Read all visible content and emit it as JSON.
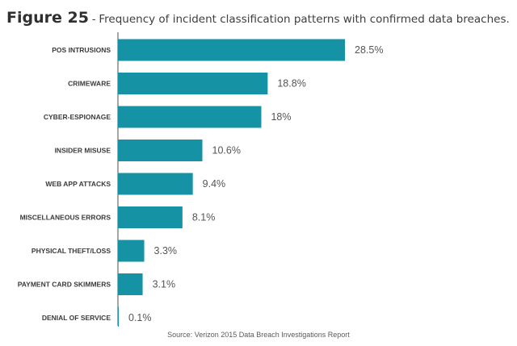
{
  "figure": {
    "label": "Figure 25",
    "dash": " - ",
    "title": "Frequency of incident classification patterns with confirmed data breaches."
  },
  "source": "Source:  Verizon 2015 Data Breach Investigations Report",
  "chart_data": {
    "type": "bar",
    "orientation": "horizontal",
    "title": "Frequency of incident classification patterns with confirmed data breaches.",
    "categories": [
      "POS INTRUSIONS",
      "CRIMEWARE",
      "CYBER-ESPIONAGE",
      "INSIDER MISUSE",
      "WEB APP ATTACKS",
      "MISCELLANEOUS ERRORS",
      "PHYSICAL THEFT/LOSS",
      "PAYMENT CARD SKIMMERS",
      "DENIAL OF SERVICE"
    ],
    "values": [
      28.5,
      18.8,
      18,
      10.6,
      9.4,
      8.1,
      3.3,
      3.1,
      0.1
    ],
    "value_labels": [
      "28.5%",
      "18.8%",
      "18%",
      "10.6%",
      "9.4%",
      "8.1%",
      "3.3%",
      "3.1%",
      "0.1%"
    ],
    "unit": "%",
    "xlim": [
      0,
      28.5
    ],
    "grid": false,
    "bar_color": "#1592a4",
    "axis_color": "#6b6b6b"
  }
}
